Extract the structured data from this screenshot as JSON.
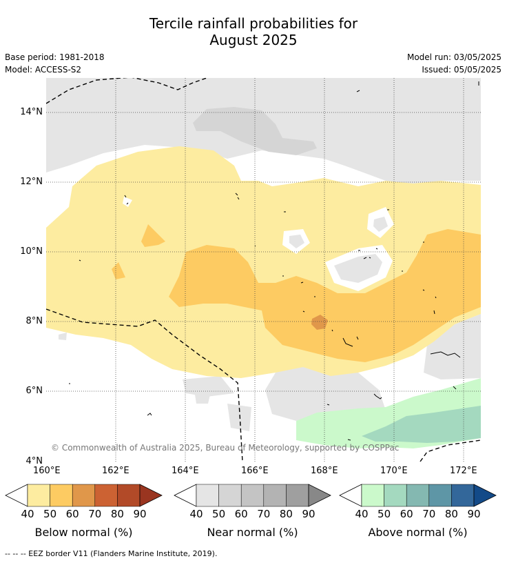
{
  "title_line1": "Tercile rainfall probabilities for",
  "title_line2": "August 2025",
  "meta": {
    "base_period": "Base period: 1981-2018",
    "model": "Model: ACCESS-S2",
    "model_run": "Model run: 03/05/2025",
    "issued": "Issued: 05/05/2025"
  },
  "map": {
    "lat_labels": [
      "14°N",
      "12°N",
      "10°N",
      "8°N",
      "6°N",
      "4°N"
    ],
    "lon_labels": [
      "160°E",
      "162°E",
      "164°E",
      "166°E",
      "168°E",
      "170°E",
      "172°E"
    ],
    "copyright": "© Commonwealth of Australia 2025, Bureau of Meteorology, supported by COSPPac"
  },
  "colorbars": [
    {
      "title": "Below normal (%)",
      "labels": [
        "40",
        "50",
        "60",
        "70",
        "80",
        "90"
      ],
      "colors": [
        "#fdeca0",
        "#fdcb62",
        "#e0974a",
        "#cc6233",
        "#b24a28",
        "#9a3520"
      ]
    },
    {
      "title": "Near normal (%)",
      "labels": [
        "40",
        "50",
        "60",
        "70",
        "80",
        "90"
      ],
      "colors": [
        "#e5e5e5",
        "#d5d5d5",
        "#c4c4c4",
        "#b3b3b3",
        "#9f9f9f",
        "#888888"
      ]
    },
    {
      "title": "Above normal (%)",
      "labels": [
        "40",
        "50",
        "60",
        "70",
        "80",
        "90"
      ],
      "colors": [
        "#cbf9cb",
        "#a4d9bf",
        "#84b8b1",
        "#5e96a6",
        "#33679a",
        "#134a88"
      ]
    }
  ],
  "footnote": "--  --  -- EEZ border V11 (Flanders Marine Institute, 2019)."
}
